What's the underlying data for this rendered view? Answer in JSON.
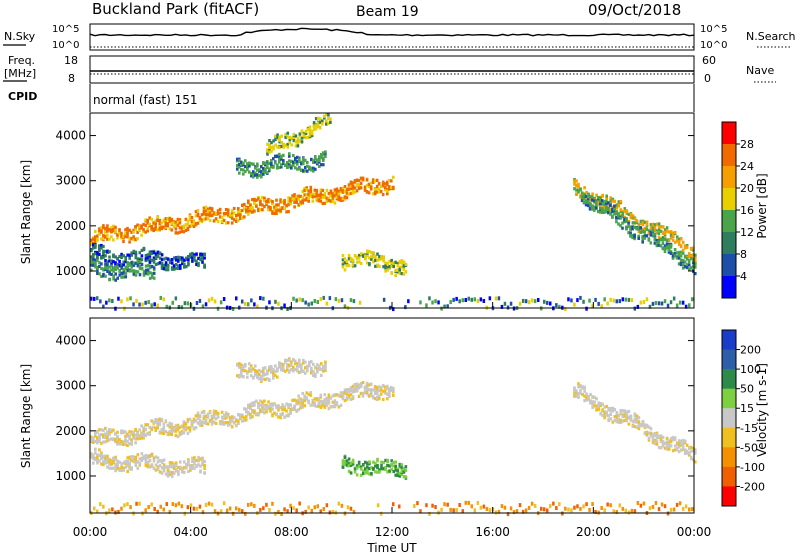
{
  "header": {
    "site": "Buckland Park (fitACF)",
    "beam": "Beam 19",
    "date": "09/Oct/2018"
  },
  "top_panels": {
    "nsky_label": "N.Sky",
    "nsearch_label": "N.Search",
    "noise_ticks": [
      "10^5",
      "10^0"
    ],
    "freq_label": "Freq.",
    "freq_unit": "[MHz]",
    "freq_ticks": [
      "18",
      "8"
    ],
    "nave_label": "Nave",
    "nave_ticks": [
      "60",
      "0"
    ],
    "cpid_label": "CPID",
    "cpid_value": "normal (fast) 151"
  },
  "chart_data": [
    {
      "type": "heatmap",
      "name": "power",
      "ylabel": "Slant Range [km]",
      "ylim": [
        180,
        4500
      ],
      "y_ticks": [
        "1000",
        "2000",
        "3000",
        "4000"
      ],
      "colorbar": {
        "label": "Power [dB]",
        "ticks": [
          "4",
          "8",
          "12",
          "16",
          "20",
          "24",
          "28"
        ],
        "colors": [
          "#0000ff",
          "#1e4fa8",
          "#2e7d5e",
          "#4aa44a",
          "#e8d000",
          "#f5a000",
          "#f06a00",
          "#ff0000"
        ]
      },
      "echo_bands": [
        {
          "start_h": 0.0,
          "end_h": 12.0,
          "range_from": 1750,
          "range_to": 3000,
          "power_db": 26
        },
        {
          "start_h": 0.0,
          "end_h": 4.5,
          "range_from": 1400,
          "range_to": 1200,
          "power_db": 12
        },
        {
          "start_h": 0.0,
          "end_h": 2.5,
          "range_from": 1100,
          "range_to": 1000,
          "power_db": 16
        },
        {
          "start_h": 5.8,
          "end_h": 9.3,
          "range_from": 3300,
          "range_to": 3500,
          "power_db": 14
        },
        {
          "start_h": 7.0,
          "end_h": 9.5,
          "range_from": 3700,
          "range_to": 4400,
          "power_db": 20
        },
        {
          "start_h": 10.0,
          "end_h": 12.5,
          "range_from": 1300,
          "range_to": 1150,
          "power_db": 18
        },
        {
          "start_h": 19.2,
          "end_h": 24.0,
          "range_from": 2900,
          "range_to": 1450,
          "power_db": 24
        },
        {
          "start_h": 19.5,
          "end_h": 24.0,
          "range_from": 2700,
          "range_to": 1150,
          "power_db": 14
        }
      ],
      "ground_scatter": {
        "range_from": 200,
        "range_to": 450
      }
    },
    {
      "type": "heatmap",
      "name": "velocity",
      "ylabel": "Slant Range [km]",
      "xlabel": "Time UT",
      "ylim": [
        180,
        4500
      ],
      "y_ticks": [
        "1000",
        "2000",
        "3000",
        "4000"
      ],
      "x_ticks": [
        "00:00",
        "04:00",
        "08:00",
        "12:00",
        "16:00",
        "20:00",
        "00:00"
      ],
      "colorbar": {
        "label": "Velocity [m s-1]",
        "ticks": [
          "200",
          "100",
          "50",
          "15",
          "-15",
          "-50",
          "-100",
          "-200"
        ],
        "colors": [
          "#1a3cc8",
          "#2e5ea8",
          "#2e8a4a",
          "#7fd040",
          "#c8c8c8",
          "#f0c020",
          "#f59000",
          "#f06000",
          "#ff0000"
        ]
      },
      "echo_bands": [
        {
          "start_h": 0.0,
          "end_h": 12.0,
          "range_from": 1800,
          "range_to": 3000,
          "velocity": -30
        },
        {
          "start_h": 0.0,
          "end_h": 4.5,
          "range_from": 1400,
          "range_to": 1200,
          "velocity": 0
        },
        {
          "start_h": 5.8,
          "end_h": 9.3,
          "range_from": 3300,
          "range_to": 3500,
          "velocity": 0
        },
        {
          "start_h": 10.0,
          "end_h": 12.5,
          "range_from": 1300,
          "range_to": 1150,
          "velocity": 60
        },
        {
          "start_h": 19.2,
          "end_h": 24.0,
          "range_from": 2900,
          "range_to": 1450,
          "velocity": 0
        }
      ],
      "ground_scatter": {
        "range_from": 200,
        "range_to": 450
      }
    }
  ]
}
